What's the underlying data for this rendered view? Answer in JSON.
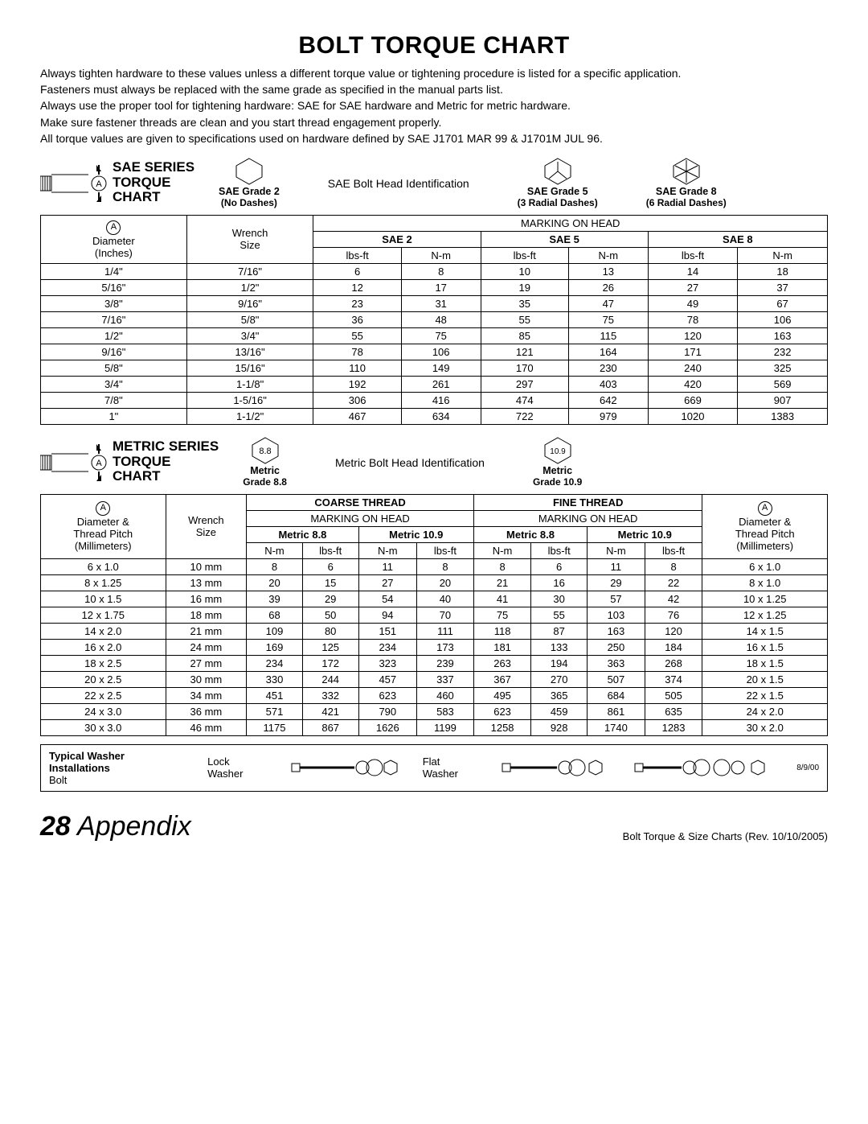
{
  "title": "BOLT TORQUE CHART",
  "intro": [
    "Always tighten hardware to these values unless a different torque value or tightening procedure is listed for a specific application.",
    "Fasteners must always be replaced with the same grade as specified in the manual parts list.",
    "Always use the proper tool for tightening hardware: SAE for SAE hardware and Metric for metric hardware.",
    "Make sure fastener threads are clean and you start thread engagement properly.",
    "All torque values are given to specifications used on hardware defined by SAE J1701 MAR 99 & J1701M JUL 96."
  ],
  "sae": {
    "chart_title_l1": "SAE SERIES",
    "chart_title_l2": "TORQUE",
    "chart_title_l3": "CHART",
    "id_label": "SAE Bolt Head Identification",
    "grades": [
      {
        "name": "SAE Grade 2",
        "sub": "(No Dashes)",
        "dashes": 0
      },
      {
        "name": "SAE Grade 5",
        "sub": "(3 Radial Dashes)",
        "dashes": 3
      },
      {
        "name": "SAE Grade 8",
        "sub": "(6 Radial Dashes)",
        "dashes": 6
      }
    ],
    "col_a_label_l1": "Diameter",
    "col_a_label_l2": "(Inches)",
    "col_wrench_l1": "Wrench",
    "col_wrench_l2": "Size",
    "marking": "MARKING ON HEAD",
    "grade_headers": [
      "SAE 2",
      "SAE 5",
      "SAE 8"
    ],
    "unit_lbs": "lbs-ft",
    "unit_nm": "N-m",
    "rows": [
      [
        "1/4\"",
        "7/16\"",
        "6",
        "8",
        "10",
        "13",
        "14",
        "18"
      ],
      [
        "5/16\"",
        "1/2\"",
        "12",
        "17",
        "19",
        "26",
        "27",
        "37"
      ],
      [
        "3/8\"",
        "9/16\"",
        "23",
        "31",
        "35",
        "47",
        "49",
        "67"
      ],
      [
        "7/16\"",
        "5/8\"",
        "36",
        "48",
        "55",
        "75",
        "78",
        "106"
      ],
      [
        "1/2\"",
        "3/4\"",
        "55",
        "75",
        "85",
        "115",
        "120",
        "163"
      ],
      [
        "9/16\"",
        "13/16\"",
        "78",
        "106",
        "121",
        "164",
        "171",
        "232"
      ],
      [
        "5/8\"",
        "15/16\"",
        "110",
        "149",
        "170",
        "230",
        "240",
        "325"
      ],
      [
        "3/4\"",
        "1-1/8\"",
        "192",
        "261",
        "297",
        "403",
        "420",
        "569"
      ],
      [
        "7/8\"",
        "1-5/16\"",
        "306",
        "416",
        "474",
        "642",
        "669",
        "907"
      ],
      [
        "1\"",
        "1-1/2\"",
        "467",
        "634",
        "722",
        "979",
        "1020",
        "1383"
      ]
    ]
  },
  "metric": {
    "chart_title_l1": "METRIC SERIES",
    "chart_title_l2": "TORQUE",
    "chart_title_l3": "CHART",
    "id_label": "Metric Bolt Head Identification",
    "grades": [
      {
        "name": "Metric",
        "sub": "Grade 8.8",
        "txt": "8.8"
      },
      {
        "name": "Metric",
        "sub": "Grade 10.9",
        "txt": "10.9"
      }
    ],
    "coarse": "COARSE THREAD",
    "fine": "FINE THREAD",
    "marking": "MARKING ON HEAD",
    "grade_headers": [
      "Metric 8.8",
      "Metric 10.9"
    ],
    "unit_lbs": "lbs-ft",
    "unit_nm": "N-m",
    "col_a_label_l1": "Diameter &",
    "col_a_label_l2": "Thread Pitch",
    "col_a_label_l3": "(Millimeters)",
    "col_wrench_l1": "Wrench",
    "col_wrench_l2": "Size",
    "rows": [
      [
        "6 x 1.0",
        "10 mm",
        "8",
        "6",
        "11",
        "8",
        "8",
        "6",
        "11",
        "8",
        "6 x 1.0"
      ],
      [
        "8 x 1.25",
        "13 mm",
        "20",
        "15",
        "27",
        "20",
        "21",
        "16",
        "29",
        "22",
        "8 x 1.0"
      ],
      [
        "10 x 1.5",
        "16 mm",
        "39",
        "29",
        "54",
        "40",
        "41",
        "30",
        "57",
        "42",
        "10 x 1.25"
      ],
      [
        "12 x 1.75",
        "18 mm",
        "68",
        "50",
        "94",
        "70",
        "75",
        "55",
        "103",
        "76",
        "12 x 1.25"
      ],
      [
        "14 x 2.0",
        "21 mm",
        "109",
        "80",
        "151",
        "111",
        "118",
        "87",
        "163",
        "120",
        "14 x 1.5"
      ],
      [
        "16 x 2.0",
        "24 mm",
        "169",
        "125",
        "234",
        "173",
        "181",
        "133",
        "250",
        "184",
        "16 x 1.5"
      ],
      [
        "18 x 2.5",
        "27 mm",
        "234",
        "172",
        "323",
        "239",
        "263",
        "194",
        "363",
        "268",
        "18 x 1.5"
      ],
      [
        "20 x 2.5",
        "30 mm",
        "330",
        "244",
        "457",
        "337",
        "367",
        "270",
        "507",
        "374",
        "20 x 1.5"
      ],
      [
        "22 x 2.5",
        "34 mm",
        "451",
        "332",
        "623",
        "460",
        "495",
        "365",
        "684",
        "505",
        "22 x 1.5"
      ],
      [
        "24 x 3.0",
        "36 mm",
        "571",
        "421",
        "790",
        "583",
        "623",
        "459",
        "861",
        "635",
        "24 x 2.0"
      ],
      [
        "30 x 3.0",
        "46 mm",
        "1175",
        "867",
        "1626",
        "1199",
        "1258",
        "928",
        "1740",
        "1283",
        "30 x 2.0"
      ]
    ]
  },
  "washer": {
    "title": "Typical Washer Installations",
    "bolt": "Bolt",
    "lock": "Lock Washer",
    "flat": "Flat Washer",
    "date": "8/9/00"
  },
  "footer": {
    "page": "28",
    "section": "Appendix",
    "rev": "Bolt Torque & Size Charts (Rev. 10/10/2005)"
  },
  "a_letter": "A"
}
